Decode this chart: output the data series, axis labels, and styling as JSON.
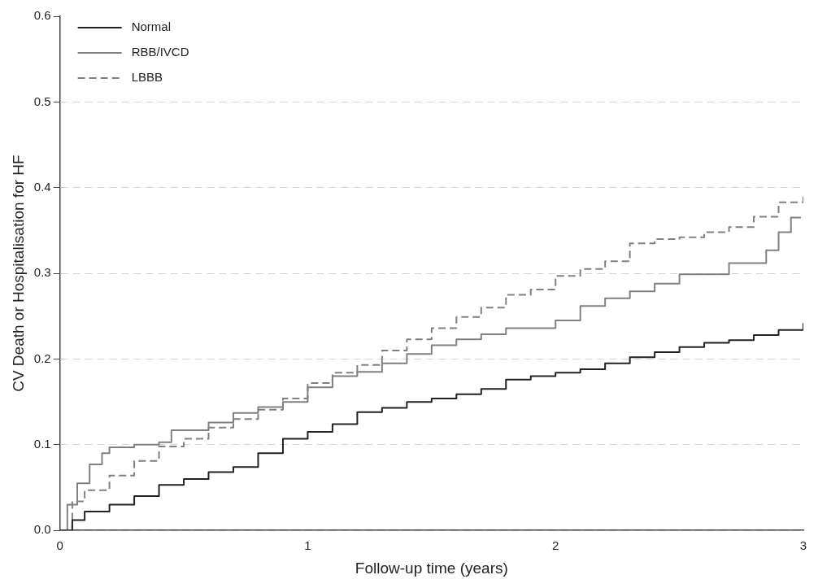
{
  "chart_data": {
    "type": "step",
    "xlabel": "Follow-up time (years)",
    "ylabel": "CV Death or Hospitalisation for HF",
    "xlim": [
      0,
      3
    ],
    "xticks": [
      0,
      1,
      2,
      3
    ],
    "ylim": [
      0,
      0.6
    ],
    "yticks": [
      {
        "value": 0,
        "label": "0.0"
      },
      0.1,
      0.2,
      0.3,
      0.4,
      0.5,
      0.6
    ],
    "grid": "y",
    "legend": "top left",
    "series": [
      {
        "name": "Normal",
        "color": "#222222",
        "line_style": "solid",
        "x": [
          0,
          0.05,
          0.1,
          0.2,
          0.3,
          0.4,
          0.5,
          0.6,
          0.7,
          0.8,
          0.9,
          1.0,
          1.1,
          1.2,
          1.3,
          1.4,
          1.5,
          1.6,
          1.7,
          1.8,
          1.9,
          2.0,
          2.1,
          2.2,
          2.3,
          2.4,
          2.5,
          2.6,
          2.7,
          2.8,
          2.9,
          3.0
        ],
        "values": [
          0,
          0.012,
          0.022,
          0.03,
          0.04,
          0.053,
          0.06,
          0.068,
          0.074,
          0.09,
          0.107,
          0.115,
          0.124,
          0.138,
          0.143,
          0.15,
          0.154,
          0.159,
          0.165,
          0.176,
          0.18,
          0.184,
          0.188,
          0.195,
          0.202,
          0.208,
          0.214,
          0.219,
          0.222,
          0.228,
          0.234,
          0.242
        ]
      },
      {
        "name": "RBB/IVCD",
        "color": "#808080",
        "line_style": "solid",
        "x": [
          0,
          0.03,
          0.07,
          0.12,
          0.17,
          0.2,
          0.3,
          0.4,
          0.45,
          0.6,
          0.7,
          0.8,
          0.9,
          1.0,
          1.1,
          1.2,
          1.3,
          1.4,
          1.5,
          1.6,
          1.7,
          1.8,
          1.9,
          2.0,
          2.1,
          2.2,
          2.3,
          2.4,
          2.5,
          2.6,
          2.7,
          2.8,
          2.85,
          2.9,
          2.95,
          2.99
        ],
        "values": [
          0,
          0.03,
          0.055,
          0.077,
          0.09,
          0.097,
          0.1,
          0.103,
          0.117,
          0.126,
          0.137,
          0.144,
          0.15,
          0.167,
          0.18,
          0.185,
          0.195,
          0.206,
          0.216,
          0.223,
          0.229,
          0.236,
          0.236,
          0.245,
          0.262,
          0.271,
          0.279,
          0.288,
          0.299,
          0.299,
          0.312,
          0.312,
          0.327,
          0.348,
          0.365,
          0.365
        ]
      },
      {
        "name": "LBBB",
        "color": "#808080",
        "line_style": "dashed",
        "x": [
          0,
          0.05,
          0.1,
          0.2,
          0.3,
          0.4,
          0.5,
          0.6,
          0.7,
          0.8,
          0.9,
          1.0,
          1.1,
          1.2,
          1.3,
          1.4,
          1.5,
          1.6,
          1.7,
          1.8,
          1.9,
          2.0,
          2.1,
          2.2,
          2.3,
          2.4,
          2.5,
          2.6,
          2.7,
          2.8,
          2.9,
          3.0
        ],
        "values": [
          0,
          0.034,
          0.047,
          0.064,
          0.081,
          0.098,
          0.107,
          0.12,
          0.13,
          0.141,
          0.154,
          0.172,
          0.184,
          0.193,
          0.21,
          0.223,
          0.236,
          0.249,
          0.26,
          0.275,
          0.281,
          0.297,
          0.305,
          0.314,
          0.335,
          0.34,
          0.342,
          0.348,
          0.354,
          0.366,
          0.383,
          0.39
        ]
      }
    ]
  }
}
